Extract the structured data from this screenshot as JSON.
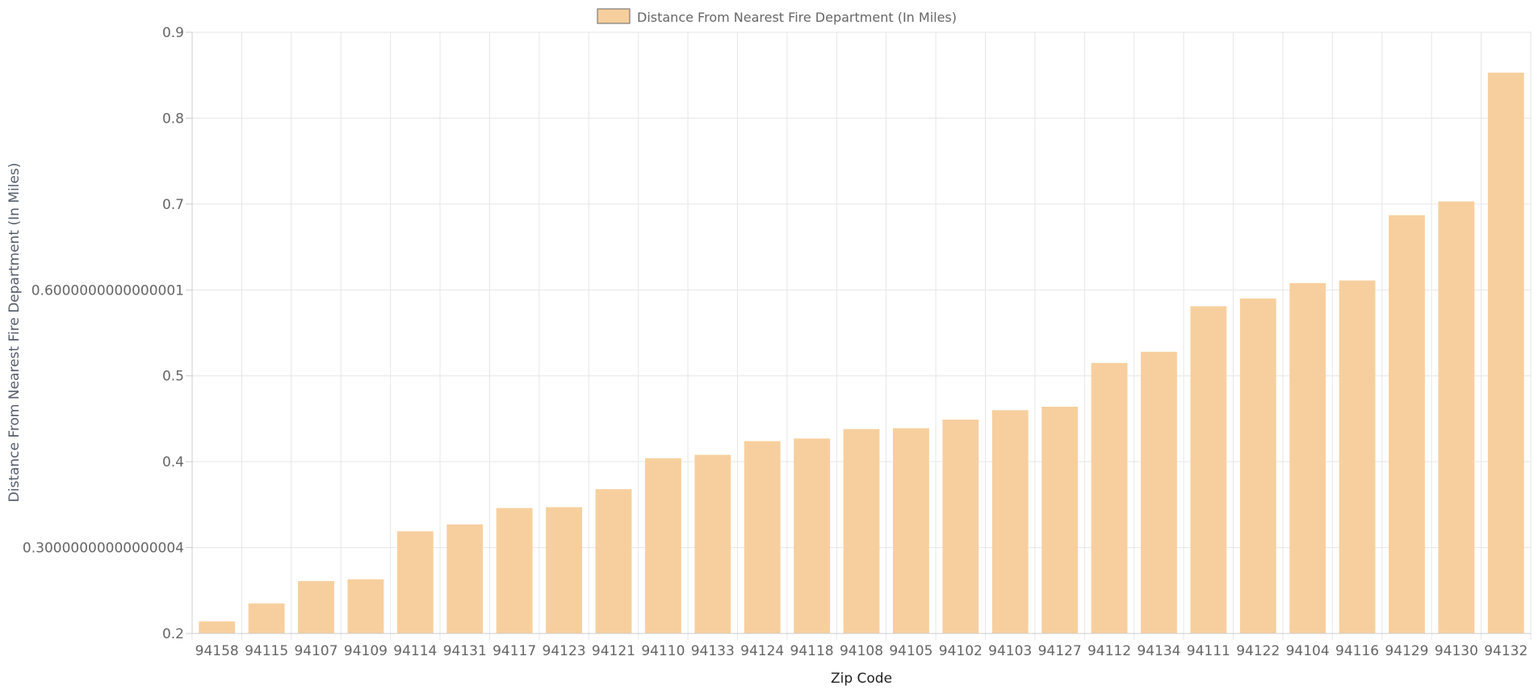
{
  "chart_data": {
    "type": "bar",
    "legend": {
      "label": "Distance From Nearest Fire Department (In Miles)",
      "position": "top-center"
    },
    "xlabel": "Zip Code",
    "ylabel": "Distance From Nearest Fire Department (In Miles)",
    "ylim": [
      0.2,
      0.9
    ],
    "y_ticks": [
      0.2,
      0.3,
      0.4,
      0.5,
      0.6,
      0.7,
      0.8,
      0.9
    ],
    "y_tick_labels": [
      "0.2",
      "0.30000000000000004",
      "0.4",
      "0.5",
      "0.6000000000000001",
      "0.7",
      "0.8",
      "0.9"
    ],
    "grid": true,
    "categories": [
      "94158",
      "94115",
      "94107",
      "94109",
      "94114",
      "94131",
      "94117",
      "94123",
      "94121",
      "94110",
      "94133",
      "94124",
      "94118",
      "94108",
      "94105",
      "94102",
      "94103",
      "94127",
      "94112",
      "94134",
      "94111",
      "94122",
      "94104",
      "94116",
      "94129",
      "94130",
      "94132"
    ],
    "series": [
      {
        "name": "Distance From Nearest Fire Department (In Miles)",
        "color": "#f7cf9e",
        "values": [
          0.214,
          0.235,
          0.261,
          0.263,
          0.319,
          0.327,
          0.346,
          0.347,
          0.368,
          0.404,
          0.408,
          0.424,
          0.427,
          0.438,
          0.439,
          0.449,
          0.46,
          0.464,
          0.515,
          0.528,
          0.581,
          0.59,
          0.608,
          0.611,
          0.687,
          0.703,
          0.853
        ]
      }
    ]
  }
}
